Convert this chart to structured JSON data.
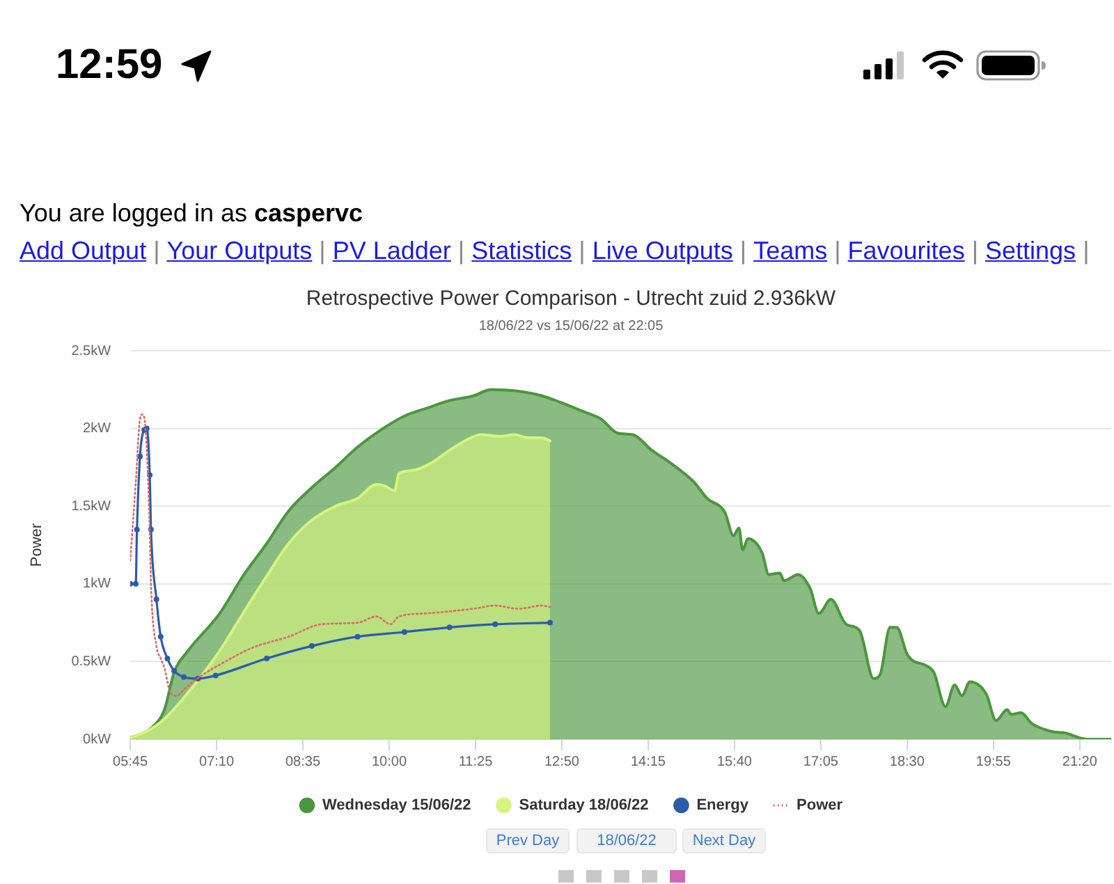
{
  "chart_data": {
    "type": "area",
    "title": "Retrospective Power Comparison - Utrecht zuid 2.936kW",
    "subtitle": "18/06/22 vs 15/06/22 at 22:05",
    "ylabel": "Power",
    "xlim": [
      5.75,
      21.85
    ],
    "xticks": [
      {
        "value": 5.75,
        "label": "05:45"
      },
      {
        "value": 7.1667,
        "label": "07:10"
      },
      {
        "value": 8.5833,
        "label": "08:35"
      },
      {
        "value": 10,
        "label": "10:00"
      },
      {
        "value": 11.4167,
        "label": "11:25"
      },
      {
        "value": 12.8333,
        "label": "12:50"
      },
      {
        "value": 14.25,
        "label": "14:15"
      },
      {
        "value": 15.6667,
        "label": "15:40"
      },
      {
        "value": 17.0833,
        "label": "17:05"
      },
      {
        "value": 18.5,
        "label": "18:30"
      },
      {
        "value": 19.9167,
        "label": "19:55"
      },
      {
        "value": 21.3333,
        "label": "21:20"
      }
    ],
    "ylim": [
      0,
      2.5
    ],
    "yticks": [
      {
        "value": 0,
        "label": "0kW"
      },
      {
        "value": 0.5,
        "label": "0.5kW"
      },
      {
        "value": 1,
        "label": "1kW"
      },
      {
        "value": 1.5,
        "label": "1.5kW"
      },
      {
        "value": 2,
        "label": "2kW"
      },
      {
        "value": 2.5,
        "label": "2.5kW"
      }
    ],
    "grid": "y",
    "legend": "bottom",
    "series": [
      {
        "name": "Wednesday 15/06/22",
        "type": "area",
        "color": "#4c963f",
        "x": [
          5.75,
          6.09,
          6.31,
          6.47,
          6.7,
          7.22,
          7.6,
          7.99,
          8.35,
          8.73,
          9.12,
          9.48,
          9.86,
          10.25,
          10.61,
          10.99,
          11.38,
          11.67,
          12.12,
          12.51,
          12.8,
          13.18,
          13.48,
          13.75,
          14.0,
          14.31,
          14.61,
          14.99,
          15.22,
          15.51,
          15.65,
          15.74,
          15.8,
          15.89,
          16.12,
          16.23,
          16.41,
          16.48,
          16.71,
          16.91,
          17.05,
          17.25,
          17.5,
          17.72,
          17.95,
          18.06,
          18.22,
          18.33,
          18.51,
          18.83,
          18.94,
          19.13,
          19.28,
          19.4,
          19.53,
          19.8,
          19.96,
          20.14,
          20.21,
          20.37,
          20.55,
          20.87,
          21.09,
          21.45,
          21.84
        ],
        "values": [
          0.01,
          0.07,
          0.19,
          0.43,
          0.57,
          0.81,
          1.05,
          1.26,
          1.47,
          1.62,
          1.75,
          1.88,
          1.99,
          2.08,
          2.13,
          2.18,
          2.21,
          2.25,
          2.24,
          2.21,
          2.17,
          2.11,
          2.06,
          1.97,
          1.96,
          1.86,
          1.78,
          1.66,
          1.55,
          1.46,
          1.31,
          1.36,
          1.22,
          1.29,
          1.2,
          1.06,
          1.07,
          1.02,
          1.06,
          0.97,
          0.81,
          0.9,
          0.74,
          0.7,
          0.39,
          0.42,
          0.72,
          0.72,
          0.54,
          0.47,
          0.43,
          0.21,
          0.35,
          0.28,
          0.37,
          0.29,
          0.12,
          0.19,
          0.16,
          0.17,
          0.1,
          0.05,
          0.04,
          0,
          0
        ]
      },
      {
        "name": "Saturday 18/06/22",
        "type": "area",
        "color": "#d4f57f",
        "x": [
          5.75,
          6.02,
          6.31,
          6.7,
          7.22,
          7.6,
          7.99,
          8.35,
          8.73,
          9.12,
          9.48,
          9.79,
          9.93,
          10.09,
          10.16,
          10.38,
          10.7,
          10.99,
          11.29,
          11.51,
          11.83,
          12.05,
          12.28,
          12.51,
          12.64
        ],
        "values": [
          0.01,
          0.05,
          0.13,
          0.3,
          0.57,
          0.81,
          1.05,
          1.26,
          1.41,
          1.5,
          1.55,
          1.64,
          1.63,
          1.6,
          1.71,
          1.73,
          1.78,
          1.86,
          1.93,
          1.96,
          1.95,
          1.96,
          1.94,
          1.94,
          1.92
        ]
      },
      {
        "name": "Energy",
        "type": "line",
        "color": "#2a5caa",
        "marker": "circle",
        "x": [
          5.75,
          5.84,
          5.86,
          5.91,
          5.98,
          6.02,
          6.07,
          6.09,
          6.18,
          6.25,
          6.36,
          6.47,
          6.63,
          6.86,
          7.15,
          7.99,
          8.73,
          9.48,
          10.25,
          10.99,
          11.74,
          12.64
        ],
        "values": [
          1.0,
          1.0,
          1.35,
          1.82,
          1.99,
          2.0,
          1.7,
          1.35,
          0.9,
          0.66,
          0.52,
          0.44,
          0.4,
          0.39,
          0.41,
          0.52,
          0.6,
          0.66,
          0.69,
          0.72,
          0.74,
          0.75
        ]
      },
      {
        "name": "Power",
        "type": "line",
        "color": "#e06666",
        "line_style": "dotted",
        "x": [
          5.75,
          5.84,
          5.91,
          5.95,
          6.0,
          6.07,
          6.09,
          6.18,
          6.25,
          6.31,
          6.41,
          6.52,
          6.63,
          6.92,
          7.22,
          7.76,
          8.35,
          8.89,
          9.48,
          9.79,
          10.02,
          10.16,
          10.61,
          11.38,
          11.74,
          12.12,
          12.51,
          12.64
        ],
        "values": [
          1.15,
          1.65,
          2.06,
          2.09,
          2.0,
          1.35,
          1.0,
          0.6,
          0.52,
          0.46,
          0.3,
          0.28,
          0.32,
          0.41,
          0.48,
          0.59,
          0.66,
          0.74,
          0.75,
          0.79,
          0.74,
          0.79,
          0.81,
          0.84,
          0.86,
          0.84,
          0.86,
          0.85
        ]
      }
    ],
    "annotations": [
      "12:59",
      "You are logged in as caspervc",
      "Add Output | Your Outputs | PV Ladder | Statistics | Live Outputs | Teams | Favourites | Settings |",
      "Prev Day",
      "18/06/22",
      "Next Day"
    ]
  }
}
